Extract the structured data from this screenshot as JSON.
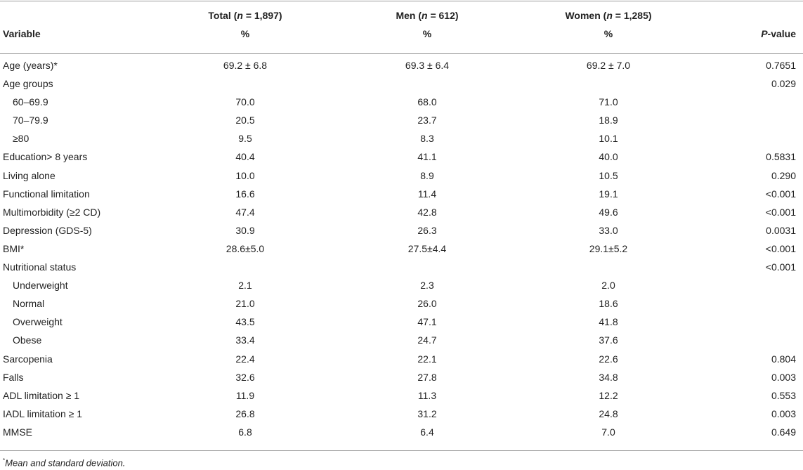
{
  "header": {
    "col_total": {
      "prefix": "Total (",
      "n": "n",
      "suffix": " = 1,897)",
      "unit": "%"
    },
    "col_men": {
      "prefix": "Men (",
      "n": "n",
      "suffix": " = 612)",
      "unit": "%"
    },
    "col_women": {
      "prefix": "Women (",
      "n": "n",
      "suffix": " = 1,285)",
      "unit": "%"
    },
    "variable_label": "Variable",
    "pvalue_italic": "P",
    "pvalue_rest": "-value"
  },
  "rows": [
    {
      "variable": "Age (years)*",
      "total": "69.2 ± 6.8",
      "men": "69.3 ± 6.4",
      "women": "69.2 ± 7.0",
      "p": "0.7651",
      "indent": false
    },
    {
      "variable": "Age groups",
      "total": "",
      "men": "",
      "women": "",
      "p": "0.029",
      "indent": false
    },
    {
      "variable": "60–69.9",
      "total": "70.0",
      "men": "68.0",
      "women": "71.0",
      "p": "",
      "indent": true
    },
    {
      "variable": "70–79.9",
      "total": "20.5",
      "men": "23.7",
      "women": "18.9",
      "p": "",
      "indent": true
    },
    {
      "variable": "≥80",
      "total": "9.5",
      "men": "8.3",
      "women": "10.1",
      "p": "",
      "indent": true
    },
    {
      "variable": "Education> 8 years",
      "total": "40.4",
      "men": "41.1",
      "women": "40.0",
      "p": "0.5831",
      "indent": false
    },
    {
      "variable": "Living alone",
      "total": "10.0",
      "men": "8.9",
      "women": "10.5",
      "p": "0.290",
      "indent": false
    },
    {
      "variable": "Functional limitation",
      "total": "16.6",
      "men": "11.4",
      "women": "19.1",
      "p": "<0.001",
      "indent": false
    },
    {
      "variable": "Multimorbidity (≥2 CD)",
      "total": "47.4",
      "men": "42.8",
      "women": "49.6",
      "p": "<0.001",
      "indent": false
    },
    {
      "variable": "Depression (GDS-5)",
      "total": "30.9",
      "men": "26.3",
      "women": "33.0",
      "p": "0.0031",
      "indent": false
    },
    {
      "variable": "BMI*",
      "total": "28.6±5.0",
      "men": "27.5±4.4",
      "women": "29.1±5.2",
      "p": "<0.001",
      "indent": false
    },
    {
      "variable": "Nutritional status",
      "total": "",
      "men": "",
      "women": "",
      "p": "<0.001",
      "indent": false
    },
    {
      "variable": "Underweight",
      "total": "2.1",
      "men": "2.3",
      "women": "2.0",
      "p": "",
      "indent": true
    },
    {
      "variable": "Normal",
      "total": "21.0",
      "men": "26.0",
      "women": "18.6",
      "p": "",
      "indent": true
    },
    {
      "variable": "Overweight",
      "total": "43.5",
      "men": "47.1",
      "women": "41.8",
      "p": "",
      "indent": true
    },
    {
      "variable": "Obese",
      "total": "33.4",
      "men": "24.7",
      "women": "37.6",
      "p": "",
      "indent": true
    },
    {
      "variable": "Sarcopenia",
      "total": "22.4",
      "men": "22.1",
      "women": "22.6",
      "p": "0.804",
      "indent": false
    },
    {
      "variable": "Falls",
      "total": "32.6",
      "men": "27.8",
      "women": "34.8",
      "p": "0.003",
      "indent": false
    },
    {
      "variable": "ADL limitation ≥ 1",
      "total": "11.9",
      "men": "11.3",
      "women": "12.2",
      "p": "0.553",
      "indent": false
    },
    {
      "variable": "IADL limitation ≥ 1",
      "total": "26.8",
      "men": "31.2",
      "women": "24.8",
      "p": "0.003",
      "indent": false
    },
    {
      "variable": "MMSE",
      "total": "6.8",
      "men": "6.4",
      "women": "7.0",
      "p": "0.649",
      "indent": false
    }
  ],
  "footnote": {
    "mark": "*",
    "text": "Mean and standard deviation."
  }
}
